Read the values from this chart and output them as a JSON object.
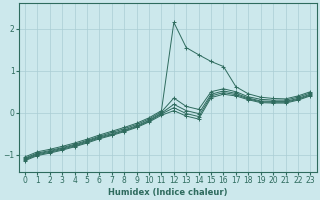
{
  "xlabel": "Humidex (Indice chaleur)",
  "bg_color": "#cce8ec",
  "line_color": "#2e6b5e",
  "grid_color": "#aacdd4",
  "xlim": [
    -0.5,
    23.5
  ],
  "ylim": [
    -1.4,
    2.6
  ],
  "yticks": [
    -1,
    0,
    1,
    2
  ],
  "xticks": [
    0,
    1,
    2,
    3,
    4,
    5,
    6,
    7,
    8,
    9,
    10,
    11,
    12,
    13,
    14,
    15,
    16,
    17,
    18,
    19,
    20,
    21,
    22,
    23
  ],
  "series": [
    {
      "x": [
        0,
        1,
        2,
        3,
        4,
        5,
        6,
        7,
        8,
        9,
        10,
        11,
        12,
        13,
        14,
        15,
        16,
        17,
        18,
        19,
        20,
        21,
        22,
        23
      ],
      "y": [
        -1.05,
        -0.93,
        -0.87,
        -0.8,
        -0.72,
        -0.63,
        -0.53,
        -0.44,
        -0.35,
        -0.25,
        -0.12,
        0.05,
        2.15,
        1.55,
        1.38,
        1.22,
        1.1,
        0.62,
        0.45,
        0.37,
        0.34,
        0.33,
        0.4,
        0.5
      ]
    },
    {
      "x": [
        0,
        1,
        2,
        3,
        4,
        5,
        6,
        7,
        8,
        9,
        10,
        11,
        12,
        13,
        14,
        15,
        16,
        17,
        18,
        19,
        20,
        21,
        22,
        23
      ],
      "y": [
        -1.08,
        -0.96,
        -0.9,
        -0.83,
        -0.75,
        -0.66,
        -0.56,
        -0.47,
        -0.38,
        -0.28,
        -0.15,
        0.02,
        0.35,
        0.15,
        0.08,
        0.5,
        0.57,
        0.5,
        0.38,
        0.32,
        0.3,
        0.3,
        0.37,
        0.47
      ]
    },
    {
      "x": [
        0,
        1,
        2,
        3,
        4,
        5,
        6,
        7,
        8,
        9,
        10,
        11,
        12,
        13,
        14,
        15,
        16,
        17,
        18,
        19,
        20,
        21,
        22,
        23
      ],
      "y": [
        -1.1,
        -0.98,
        -0.92,
        -0.85,
        -0.77,
        -0.68,
        -0.58,
        -0.5,
        -0.41,
        -0.31,
        -0.18,
        -0.01,
        0.2,
        0.05,
        -0.02,
        0.44,
        0.52,
        0.46,
        0.35,
        0.28,
        0.27,
        0.27,
        0.34,
        0.44
      ]
    },
    {
      "x": [
        0,
        1,
        2,
        3,
        4,
        5,
        6,
        7,
        8,
        9,
        10,
        11,
        12,
        13,
        14,
        15,
        16,
        17,
        18,
        19,
        20,
        21,
        22,
        23
      ],
      "y": [
        -1.12,
        -1.0,
        -0.94,
        -0.87,
        -0.79,
        -0.7,
        -0.6,
        -0.52,
        -0.43,
        -0.33,
        -0.2,
        -0.03,
        0.12,
        -0.02,
        -0.09,
        0.4,
        0.48,
        0.43,
        0.33,
        0.26,
        0.25,
        0.25,
        0.32,
        0.42
      ]
    },
    {
      "x": [
        0,
        1,
        2,
        3,
        4,
        5,
        6,
        7,
        8,
        9,
        10,
        11,
        12,
        13,
        14,
        15,
        16,
        17,
        18,
        19,
        20,
        21,
        22,
        23
      ],
      "y": [
        -1.14,
        -1.02,
        -0.96,
        -0.89,
        -0.81,
        -0.72,
        -0.62,
        -0.54,
        -0.45,
        -0.35,
        -0.22,
        -0.06,
        0.05,
        -0.08,
        -0.15,
        0.36,
        0.44,
        0.4,
        0.31,
        0.24,
        0.23,
        0.23,
        0.3,
        0.4
      ]
    }
  ]
}
